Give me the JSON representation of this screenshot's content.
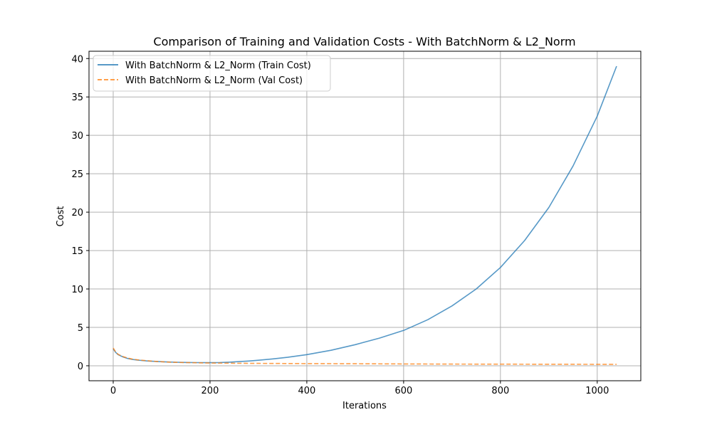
{
  "chart_data": {
    "type": "line",
    "title": "Comparison of Training and Validation Costs - With BatchNorm & L2_Norm",
    "xlabel": "Iterations",
    "ylabel": "Cost",
    "xlim": [
      -50,
      1090
    ],
    "ylim": [
      -1.95,
      40.95
    ],
    "xticks": [
      0,
      200,
      400,
      600,
      800,
      1000
    ],
    "yticks": [
      0,
      5,
      10,
      15,
      20,
      25,
      30,
      35,
      40
    ],
    "grid": true,
    "legend_position": "top-left",
    "series": [
      {
        "name": "With BatchNorm & L2_Norm (Train Cost)",
        "color": "#1f77b4",
        "style": "solid",
        "x": [
          0,
          5,
          10,
          20,
          30,
          40,
          50,
          70,
          90,
          110,
          130,
          150,
          170,
          190,
          200,
          220,
          240,
          260,
          280,
          300,
          330,
          360,
          400,
          450,
          500,
          550,
          600,
          650,
          700,
          750,
          800,
          850,
          900,
          950,
          1000,
          1040
        ],
        "y": [
          2.2,
          1.75,
          1.45,
          1.15,
          0.95,
          0.82,
          0.74,
          0.63,
          0.56,
          0.5,
          0.46,
          0.43,
          0.41,
          0.4,
          0.4,
          0.42,
          0.47,
          0.54,
          0.62,
          0.72,
          0.89,
          1.1,
          1.45,
          2.02,
          2.75,
          3.6,
          4.6,
          6.0,
          7.8,
          10.0,
          12.8,
          16.3,
          20.6,
          26.0,
          32.5,
          39.0
        ]
      },
      {
        "name": "With BatchNorm & L2_Norm (Val Cost)",
        "color": "#ff7f0e",
        "style": "dashed",
        "x": [
          0,
          5,
          10,
          20,
          30,
          40,
          50,
          70,
          90,
          110,
          130,
          150,
          170,
          190,
          200,
          250,
          300,
          400,
          500,
          600,
          700,
          800,
          900,
          1000,
          1040
        ],
        "y": [
          2.3,
          1.8,
          1.5,
          1.2,
          1.0,
          0.86,
          0.77,
          0.65,
          0.56,
          0.49,
          0.44,
          0.41,
          0.39,
          0.37,
          0.36,
          0.33,
          0.31,
          0.28,
          0.26,
          0.24,
          0.22,
          0.21,
          0.2,
          0.19,
          0.19
        ]
      }
    ]
  }
}
